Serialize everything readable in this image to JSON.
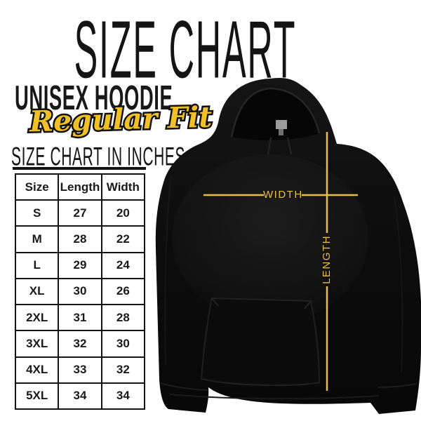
{
  "title": "SIZE CHART",
  "product": {
    "name": "UNISEX HOODIE",
    "fit": "Regular Fit",
    "fit_color": "#F0C125"
  },
  "table_heading": "SIZE CHART IN INCHES",
  "chart_data": {
    "type": "table",
    "title": "SIZE CHART",
    "subtitle": "UNISEX HOODIE — Regular Fit",
    "units": "inches",
    "columns": [
      "Size",
      "Length",
      "Width"
    ],
    "rows": [
      [
        "S",
        "27",
        "20"
      ],
      [
        "M",
        "28",
        "22"
      ],
      [
        "L",
        "29",
        "24"
      ],
      [
        "XL",
        "30",
        "26"
      ],
      [
        "2XL",
        "31",
        "28"
      ],
      [
        "3XL",
        "32",
        "30"
      ],
      [
        "4XL",
        "33",
        "32"
      ],
      [
        "5XL",
        "34",
        "34"
      ]
    ]
  },
  "diagram": {
    "width_label": "WIDTH",
    "length_label": "LENGTH",
    "line_color": "#E8BD42",
    "garment_color": "#0c0c0c"
  }
}
